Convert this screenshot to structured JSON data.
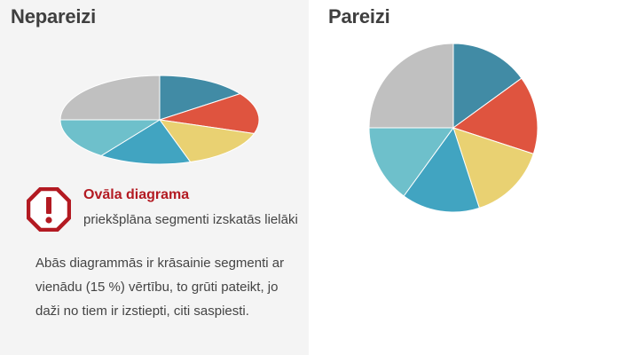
{
  "left_panel": {
    "heading": "Nepareizi",
    "warning": {
      "icon": "exclamation-octagon-icon",
      "title": "Ovāla diagrama",
      "subtitle": "priekšplāna segmenti izskatās lielāki"
    },
    "description": "Abās diagrammās ir krāsainie segmenti ar vienādu (15 %) vērtību, to grūti pateikt, jo daži no tiem ir izstiepti, citi saspiesti."
  },
  "right_panel": {
    "heading": "Pareizi"
  },
  "colors": {
    "left_background": "#f4f4f4",
    "heading": "#3f3f3f",
    "warning_red": "#b31a22",
    "text": "#444444"
  },
  "chart_data": [
    {
      "type": "pie",
      "style": "ellipse",
      "panel": "left",
      "title": "",
      "categories": [
        "",
        "",
        "",
        "",
        "",
        ""
      ],
      "values": [
        15,
        15,
        15,
        15,
        15,
        25
      ],
      "colors": [
        "#418ba5",
        "#df543f",
        "#e9d172",
        "#41a4c1",
        "#6ec0cb",
        "#c0c0c0"
      ]
    },
    {
      "type": "pie",
      "style": "circle",
      "panel": "right",
      "title": "",
      "categories": [
        "",
        "",
        "",
        "",
        "",
        ""
      ],
      "values": [
        15,
        15,
        15,
        15,
        15,
        25
      ],
      "colors": [
        "#418ba5",
        "#df543f",
        "#e9d172",
        "#41a4c1",
        "#6ec0cb",
        "#c0c0c0"
      ]
    }
  ]
}
